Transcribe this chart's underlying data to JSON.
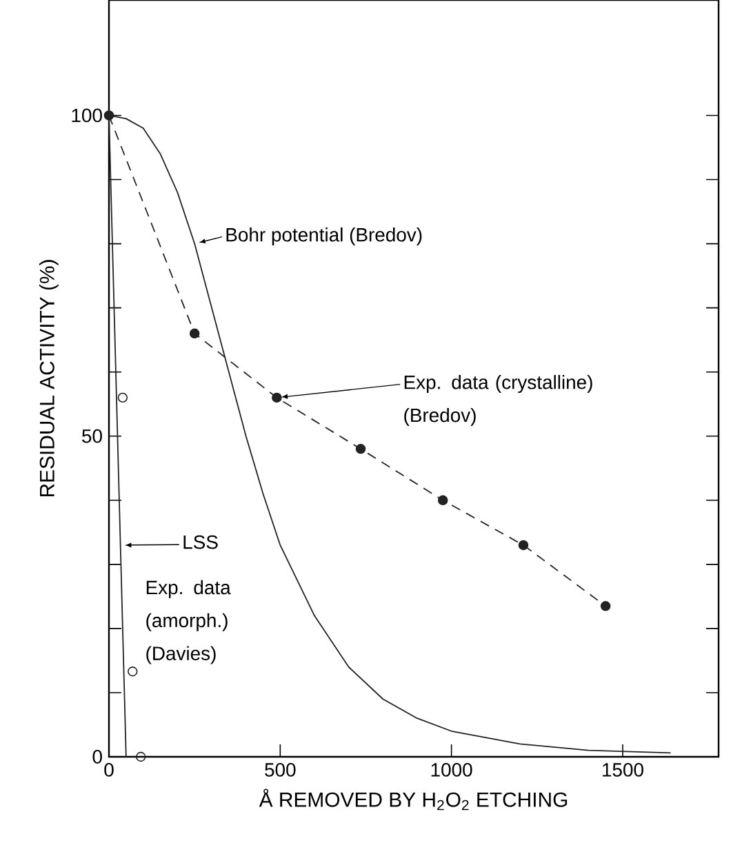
{
  "chart_data": {
    "type": "line",
    "xlabel": "Å REMOVED BY H$_{2}$O$_{2}$ ETCHING",
    "ylabel": "RESIDUAL ACTIVITY (%)",
    "xlim": [
      0,
      1780
    ],
    "ylim": [
      0,
      118
    ],
    "xticks": [
      0,
      500,
      1000,
      1500
    ],
    "yticks": [
      0,
      {
        "value": 10,
        "label": null
      },
      {
        "value": 20,
        "label": null
      },
      {
        "value": 30,
        "label": null
      },
      {
        "value": 40,
        "label": null
      },
      50,
      {
        "value": 60,
        "label": null
      },
      {
        "value": 70,
        "label": null
      },
      {
        "value": 80,
        "label": null
      },
      {
        "value": 90,
        "label": null
      },
      100
    ],
    "grid": false,
    "legend": false,
    "series": [
      {
        "name": "Bohr potential (Bredov)",
        "color": "#222222",
        "marker": "none",
        "line_style": "solid",
        "x": [
          0,
          50,
          100,
          150,
          200,
          250,
          300,
          350,
          400,
          450,
          500,
          600,
          700,
          800,
          900,
          1000,
          1200,
          1400,
          1640
        ],
        "values": [
          100,
          99.5,
          98,
          94,
          88,
          80,
          70,
          60,
          50,
          41,
          33,
          22,
          14,
          9,
          6,
          4,
          2,
          1,
          0.6
        ]
      },
      {
        "name": "Exp. data (crystalline) (Bredov)",
        "color": "#222222",
        "marker": "circle",
        "line_style": "dashed",
        "x": [
          0,
          250,
          490,
          735,
          975,
          1210,
          1450
        ],
        "values": [
          100,
          66,
          56,
          48,
          40,
          33,
          23.5
        ]
      },
      {
        "name": "LSS",
        "color": "#222222",
        "marker": "none",
        "line_style": "solid",
        "x": [
          0,
          50
        ],
        "values": [
          100,
          0
        ]
      },
      {
        "name": "Exp. data (amorph.) (Davies)",
        "type": "scatter",
        "color": "#222222",
        "marker": "circle",
        "x": [
          40,
          69,
          93
        ],
        "values": [
          56,
          13.3,
          0
        ]
      }
    ]
  }
}
